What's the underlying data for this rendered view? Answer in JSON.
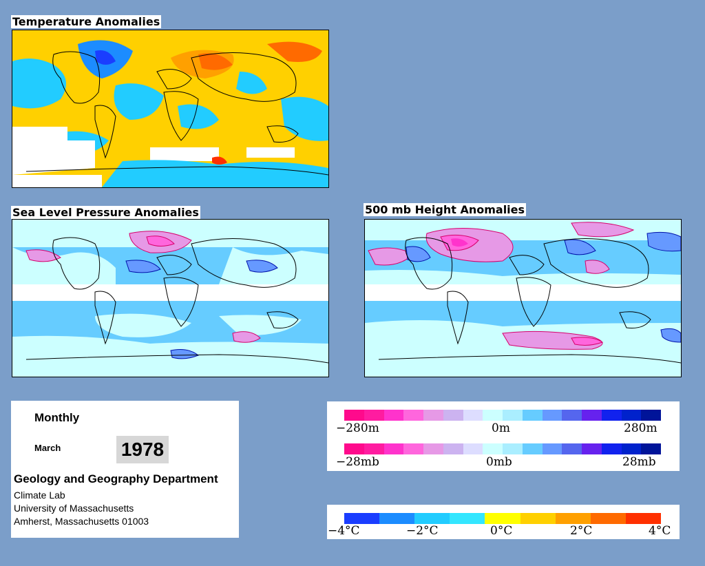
{
  "panels": {
    "temperature": {
      "title": "Temperature Anomalies"
    },
    "slp": {
      "title": "Sea Level Pressure Anomalies"
    },
    "height": {
      "title": "500 mb Height Anomalies"
    }
  },
  "info": {
    "period": "Monthly",
    "month": "March",
    "year": "1978",
    "department": "Geology and Geography Department",
    "lines": [
      "Climate Lab",
      "University of Massachusetts",
      "Amherst, Massachusetts 01003"
    ]
  },
  "legends": {
    "height": {
      "min": "−280m",
      "mid": "0m",
      "max": "280m"
    },
    "pressure": {
      "min": "−28mb",
      "mid": "0mb",
      "max": "28mb"
    },
    "temperature": {
      "labels": [
        "−4°C",
        "−2°C",
        "0°C",
        "2°C",
        "4°C"
      ]
    }
  },
  "colors": {
    "background": "#7b9ec9",
    "anomaly_scale": [
      "#ff0a8c",
      "#ff1ca0",
      "#ff33cc",
      "#ff66dd",
      "#e699e6",
      "#ccb3f0",
      "#ddddff",
      "#ccffff",
      "#aaeeff",
      "#66ccff",
      "#6699ff",
      "#5566ee",
      "#6622ee",
      "#1122ee",
      "#0022cc",
      "#001499"
    ],
    "temperature_scale": [
      "#1a3dff",
      "#1c8cff",
      "#22ccff",
      "#33e6ff",
      "#ffff00",
      "#ffd000",
      "#ffa000",
      "#ff6a00",
      "#ff3000"
    ]
  }
}
